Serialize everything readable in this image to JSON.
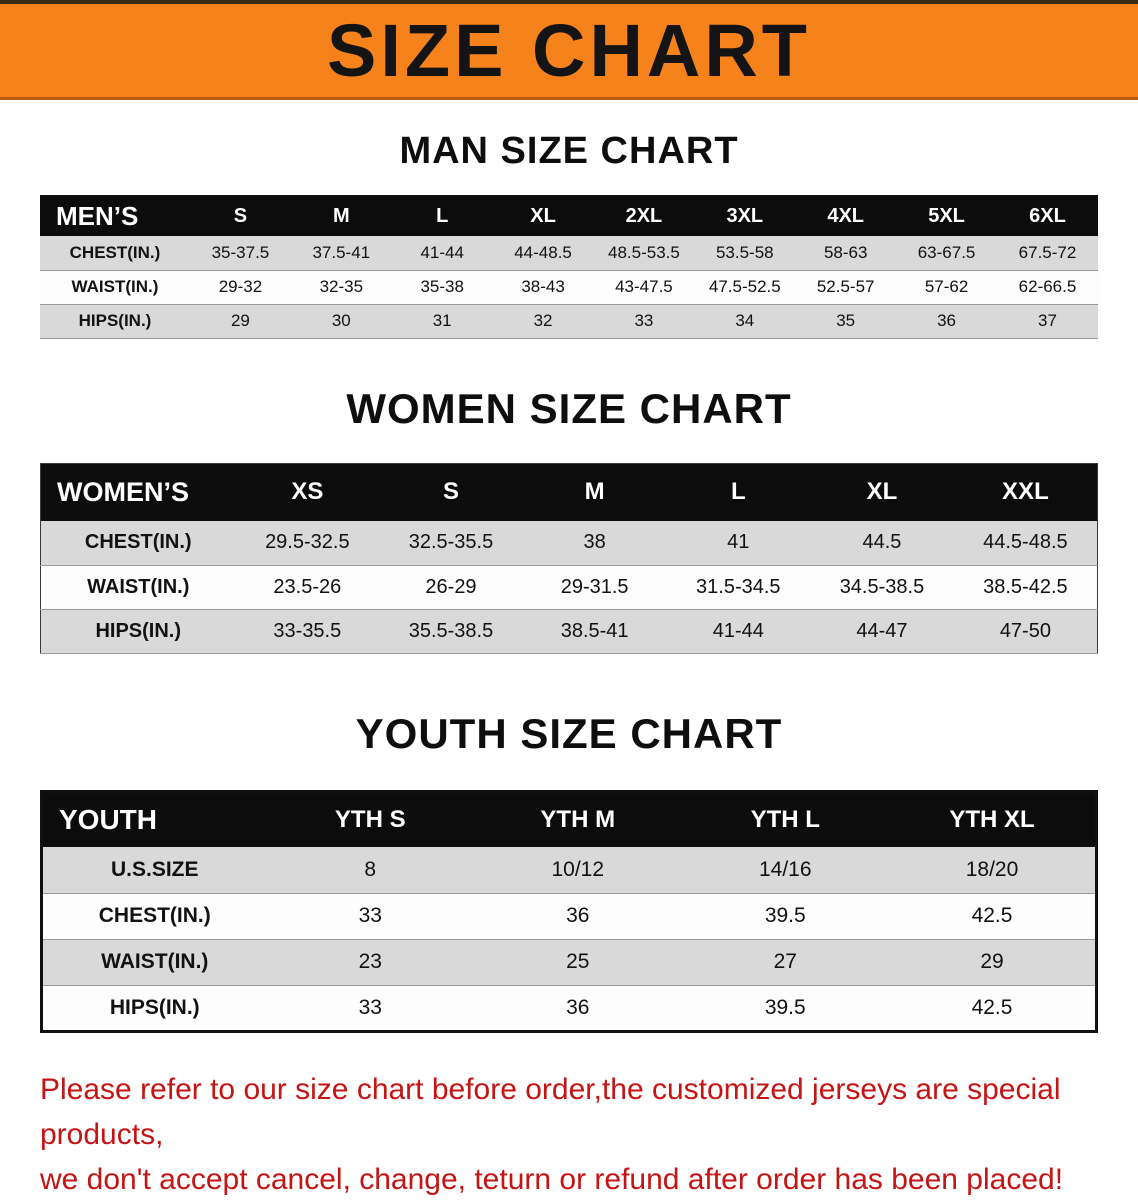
{
  "banner": {
    "title": "SIZE CHART",
    "background_color": "#f6821c",
    "text_color": "#141414"
  },
  "palette": {
    "header_row_bg": "#0c0c0c",
    "header_row_text": "#ffffff",
    "zebra_gray": "#d9d9d9",
    "footer_text": "#c41414"
  },
  "chart_data": [
    {
      "type": "table",
      "title": "MAN SIZE CHART",
      "header": [
        "MEN’S",
        "S",
        "M",
        "L",
        "XL",
        "2XL",
        "3XL",
        "4XL",
        "5XL",
        "6XL"
      ],
      "rows": [
        [
          "CHEST(IN.)",
          "35-37.5",
          "37.5-41",
          "41-44",
          "44-48.5",
          "48.5-53.5",
          "53.5-58",
          "58-63",
          "63-67.5",
          "67.5-72"
        ],
        [
          "WAIST(IN.)",
          "29-32",
          "32-35",
          "35-38",
          "38-43",
          "43-47.5",
          "47.5-52.5",
          "52.5-57",
          "57-62",
          "62-66.5"
        ],
        [
          "HIPS(IN.)",
          "29",
          "30",
          "31",
          "32",
          "33",
          "34",
          "35",
          "36",
          "37"
        ]
      ]
    },
    {
      "type": "table",
      "title": "WOMEN SIZE CHART",
      "header": [
        "WOMEN’S",
        "XS",
        "S",
        "M",
        "L",
        "XL",
        "XXL"
      ],
      "rows": [
        [
          "CHEST(IN.)",
          "29.5-32.5",
          "32.5-35.5",
          "38",
          "41",
          "44.5",
          "44.5-48.5"
        ],
        [
          "WAIST(IN.)",
          "23.5-26",
          "26-29",
          "29-31.5",
          "31.5-34.5",
          "34.5-38.5",
          "38.5-42.5"
        ],
        [
          "HIPS(IN.)",
          "33-35.5",
          "35.5-38.5",
          "38.5-41",
          "41-44",
          "44-47",
          "47-50"
        ]
      ]
    },
    {
      "type": "table",
      "title": "YOUTH SIZE CHART",
      "header": [
        "YOUTH",
        "YTH S",
        "YTH M",
        "YTH L",
        "YTH XL"
      ],
      "rows": [
        [
          "U.S.SIZE",
          "8",
          "10/12",
          "14/16",
          "18/20"
        ],
        [
          "CHEST(IN.)",
          "33",
          "36",
          "39.5",
          "42.5"
        ],
        [
          "WAIST(IN.)",
          "23",
          "25",
          "27",
          "29"
        ],
        [
          "HIPS(IN.)",
          "33",
          "36",
          "39.5",
          "42.5"
        ]
      ]
    }
  ],
  "footer_note": {
    "lines": [
      "Please refer to our size chart before order,the customized jerseys are special products,",
      "we don't accept cancel, change, teturn or refund after order has been placed!"
    ]
  }
}
